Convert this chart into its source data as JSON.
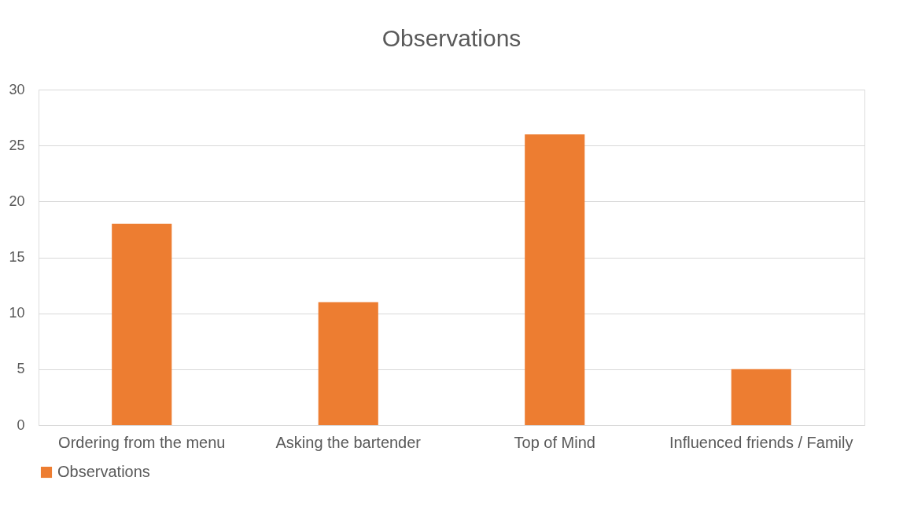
{
  "chart_data": {
    "type": "bar",
    "title": "Observations",
    "categories": [
      "Ordering from the menu",
      "Asking the bartender",
      "Top of Mind",
      "Influenced friends / Family"
    ],
    "series": [
      {
        "name": "Observations",
        "color": "#ed7d31",
        "values": [
          18,
          11,
          26,
          5
        ]
      }
    ],
    "ylim": [
      0,
      30
    ],
    "yticks": [
      0,
      5,
      10,
      15,
      20,
      25,
      30
    ],
    "grid": "y",
    "legend": "bottom"
  }
}
